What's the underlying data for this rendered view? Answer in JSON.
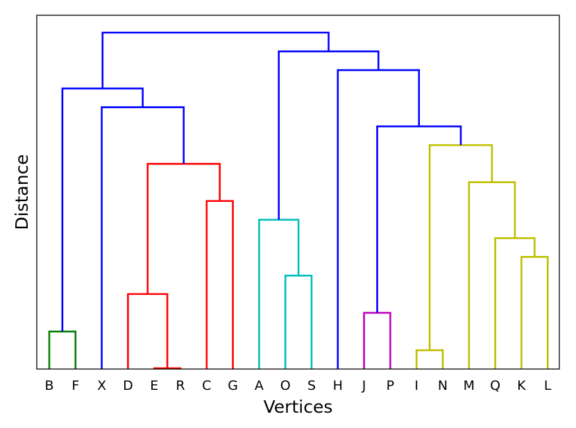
{
  "chart_data": {
    "type": "dendrogram",
    "xlabel": "Vertices",
    "ylabel": "Distance",
    "leaves": [
      "B",
      "F",
      "X",
      "D",
      "E",
      "R",
      "C",
      "G",
      "A",
      "O",
      "S",
      "H",
      "J",
      "P",
      "I",
      "N",
      "M",
      "Q",
      "K",
      "L"
    ],
    "ylim": [
      0,
      1.0
    ],
    "y_ticks_shown": false,
    "grid": false,
    "links": [
      {
        "a": "B",
        "b": "F",
        "height": 0.106,
        "color": "#008000"
      },
      {
        "a": "E",
        "b": "R",
        "height": 0.002,
        "color": "#ff0000"
      },
      {
        "a": "D",
        "b": "E+R",
        "height": 0.212,
        "color": "#ff0000"
      },
      {
        "a": "C",
        "b": "G",
        "height": 0.475,
        "color": "#ff0000"
      },
      {
        "a": "D+E+R",
        "b": "C+G",
        "height": 0.58,
        "color": "#ff0000"
      },
      {
        "a": "X",
        "b": "D+E+R+C+G",
        "height": 0.74,
        "color": "#0000ff"
      },
      {
        "a": "B+F",
        "b": "X+D+E+R+C+G",
        "height": 0.793,
        "color": "#0000ff"
      },
      {
        "a": "O",
        "b": "S",
        "height": 0.264,
        "color": "#00bfbf"
      },
      {
        "a": "A",
        "b": "O+S",
        "height": 0.422,
        "color": "#00bfbf"
      },
      {
        "a": "J",
        "b": "P",
        "height": 0.159,
        "color": "#bf00bf"
      },
      {
        "a": "I",
        "b": "N",
        "height": 0.053,
        "color": "#bfbf00"
      },
      {
        "a": "K",
        "b": "L",
        "height": 0.317,
        "color": "#bfbf00"
      },
      {
        "a": "Q",
        "b": "K+L",
        "height": 0.37,
        "color": "#bfbf00"
      },
      {
        "a": "M",
        "b": "Q+K+L",
        "height": 0.528,
        "color": "#bfbf00"
      },
      {
        "a": "I+N",
        "b": "M+Q+K+L",
        "height": 0.633,
        "color": "#bfbf00"
      },
      {
        "a": "J+P",
        "b": "I+N+M+Q+K+L",
        "height": 0.686,
        "color": "#0000ff"
      },
      {
        "a": "H",
        "b": "J+P+I+N+M+Q+K+L",
        "height": 0.845,
        "color": "#0000ff"
      },
      {
        "a": "A+O+S",
        "b": "H+J+P+I+N+M+Q+K+L",
        "height": 0.898,
        "color": "#0000ff"
      },
      {
        "a": "B+F+X+D+E+R+C+G",
        "b": "A+O+S+H+J+P+I+N+M+Q+K+L",
        "height": 0.951,
        "color": "#0000ff"
      }
    ]
  }
}
